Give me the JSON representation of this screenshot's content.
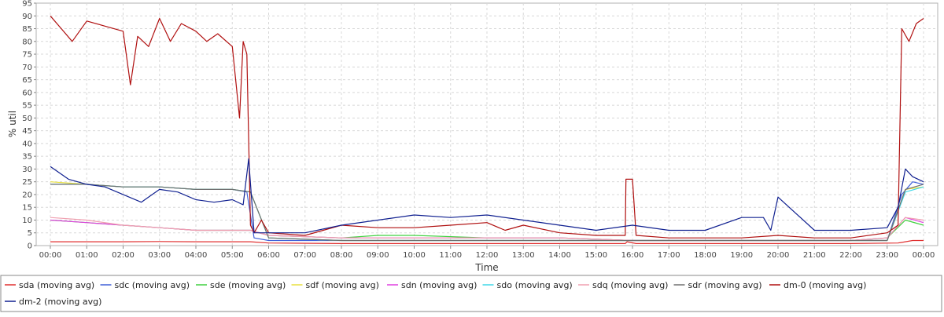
{
  "chart_data": {
    "type": "line",
    "title": "",
    "xlabel": "Time",
    "ylabel": "% util",
    "xlim": [
      "00:00",
      "24:00"
    ],
    "ylim": [
      0,
      95
    ],
    "yticks": [
      0,
      5,
      10,
      15,
      20,
      25,
      30,
      35,
      40,
      45,
      50,
      55,
      60,
      65,
      70,
      75,
      80,
      85,
      90,
      95
    ],
    "xticks": [
      "00:00",
      "01:00",
      "02:00",
      "03:00",
      "04:00",
      "05:00",
      "06:00",
      "07:00",
      "08:00",
      "09:00",
      "10:00",
      "11:00",
      "12:00",
      "13:00",
      "14:00",
      "15:00",
      "16:00",
      "17:00",
      "18:00",
      "19:00",
      "20:00",
      "21:00",
      "22:00",
      "23:00",
      "00:00"
    ],
    "grid": true,
    "legend_position": "bottom",
    "series": [
      {
        "name": "sda (moving avg)",
        "color": "#e03030",
        "x": [
          0,
          1,
          2,
          3,
          4,
          5,
          5.5,
          6,
          8,
          10,
          12,
          14,
          15.5,
          15.8,
          15.85,
          16.1,
          18,
          20,
          22,
          23.3,
          23.5,
          23.7,
          24
        ],
        "y": [
          1.5,
          1.5,
          1.5,
          1.6,
          1.5,
          1.5,
          1.5,
          1,
          0.8,
          0.8,
          0.8,
          0.8,
          0.8,
          0.8,
          1.5,
          0.8,
          0.8,
          0.8,
          0.8,
          1,
          1.5,
          2,
          2
        ]
      },
      {
        "name": "sdc (moving avg)",
        "color": "#4060d8",
        "x": [
          0,
          1,
          2,
          3,
          4,
          5,
          5.4,
          5.6,
          6,
          8,
          10,
          12,
          14,
          16,
          18,
          20,
          22,
          23,
          23.4,
          23.7,
          24
        ],
        "y": [
          24,
          24,
          23,
          23,
          22,
          22,
          21,
          3,
          2,
          2,
          2,
          2,
          2,
          2,
          2,
          2,
          2,
          2,
          20,
          25,
          24
        ]
      },
      {
        "name": "sde (moving avg)",
        "color": "#40d040",
        "x": [
          0,
          1,
          2,
          3,
          4,
          5,
          5.5,
          6,
          8,
          9,
          10,
          12,
          14,
          16,
          18,
          20,
          22,
          23,
          23.5,
          24
        ],
        "y": [
          10,
          9,
          8,
          7,
          6,
          6,
          6,
          4,
          3,
          4,
          4,
          3,
          3,
          2,
          2,
          2,
          2,
          3,
          10,
          8
        ]
      },
      {
        "name": "sdf (moving avg)",
        "color": "#e8e040",
        "x": [
          0,
          1,
          2,
          3,
          4,
          5,
          5.5,
          6,
          8,
          10,
          12,
          14,
          16,
          18,
          20,
          22,
          23,
          23.5,
          24
        ],
        "y": [
          25,
          24,
          23,
          23,
          22,
          22,
          21,
          3,
          2,
          2,
          2,
          2,
          2,
          2,
          2,
          2,
          2,
          22,
          23
        ]
      },
      {
        "name": "sdn (moving avg)",
        "color": "#e040e0",
        "x": [
          0,
          1,
          2,
          3,
          4,
          5,
          5.5,
          6,
          8,
          10,
          12,
          14,
          16,
          18,
          20,
          22,
          23,
          23.5,
          24
        ],
        "y": [
          10,
          9,
          8,
          7,
          6,
          6,
          6,
          4,
          3,
          3,
          3,
          3,
          2,
          2,
          2,
          2,
          3,
          11,
          9
        ]
      },
      {
        "name": "sdo (moving avg)",
        "color": "#40d8e8",
        "x": [
          0,
          1,
          2,
          3,
          4,
          5,
          5.5,
          6,
          8,
          10,
          12,
          14,
          16,
          18,
          20,
          22,
          23,
          23.5,
          24
        ],
        "y": [
          24,
          24,
          23,
          23,
          22,
          22,
          21,
          3,
          2,
          2,
          2,
          2,
          2,
          2,
          2,
          2,
          2,
          21,
          23
        ]
      },
      {
        "name": "sdq (moving avg)",
        "color": "#f0a0b0",
        "x": [
          0,
          1,
          2,
          3,
          4,
          5,
          5.5,
          6,
          8,
          10,
          12,
          14,
          16,
          18,
          20,
          22,
          23,
          23.5,
          24
        ],
        "y": [
          11,
          10,
          8,
          7,
          6,
          6,
          6,
          4,
          3,
          3,
          3,
          3,
          2,
          2,
          2,
          2,
          3,
          11,
          10
        ]
      },
      {
        "name": "sdr (moving avg)",
        "color": "#707070",
        "x": [
          0,
          1,
          2,
          3,
          4,
          5,
          5.5,
          6,
          8,
          10,
          12,
          14,
          16,
          18,
          20,
          22,
          23,
          23.5,
          24
        ],
        "y": [
          24,
          24,
          23,
          23,
          22,
          22,
          21,
          3,
          2,
          2,
          2,
          2,
          2,
          2,
          2,
          2,
          2,
          22,
          24
        ]
      },
      {
        "name": "dm-0 (moving avg)",
        "color": "#b01010",
        "x": [
          0,
          0.3,
          0.6,
          1,
          1.5,
          2,
          2.2,
          2.4,
          2.7,
          3,
          3.3,
          3.6,
          4,
          4.3,
          4.6,
          5,
          5.2,
          5.3,
          5.4,
          5.5,
          5.6,
          5.8,
          6,
          7,
          7.5,
          8,
          9,
          10,
          11,
          12,
          12.5,
          13,
          14,
          15,
          15.8,
          15.82,
          16,
          16.1,
          17,
          18,
          19,
          20,
          21,
          22,
          23,
          23.3,
          23.4,
          23.6,
          23.8,
          24
        ],
        "y": [
          90,
          85,
          80,
          88,
          86,
          84,
          63,
          82,
          78,
          89,
          80,
          87,
          84,
          80,
          83,
          78,
          50,
          80,
          75,
          8,
          5,
          10,
          5,
          4,
          6,
          8,
          7,
          7,
          8,
          9,
          6,
          8,
          5,
          4,
          4,
          26,
          26,
          4,
          3,
          3,
          3,
          4,
          3,
          3,
          5,
          8,
          85,
          80,
          87,
          89
        ]
      },
      {
        "name": "dm-2 (moving avg)",
        "color": "#102090",
        "x": [
          0,
          0.5,
          1,
          1.5,
          2,
          2.5,
          3,
          3.5,
          4,
          4.5,
          5,
          5.3,
          5.45,
          5.6,
          6,
          7,
          8,
          9,
          10,
          11,
          12,
          13,
          14,
          15,
          16,
          17,
          18,
          19,
          19.6,
          19.8,
          20,
          21,
          22,
          23,
          23.3,
          23.5,
          23.7,
          24
        ],
        "y": [
          31,
          26,
          24,
          23,
          20,
          17,
          22,
          21,
          18,
          17,
          18,
          16,
          34,
          5,
          5,
          5,
          8,
          10,
          12,
          11,
          12,
          10,
          8,
          6,
          8,
          6,
          6,
          11,
          11,
          6,
          19,
          6,
          6,
          7,
          15,
          30,
          27,
          25
        ]
      }
    ]
  }
}
